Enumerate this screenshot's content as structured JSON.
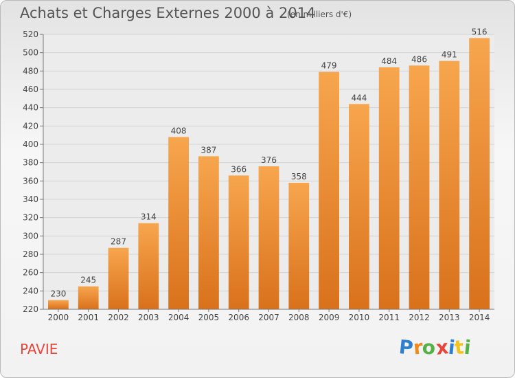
{
  "header": {
    "title": "Achats et Charges Externes 2000 à 2014",
    "subtitle": "(en milliers d'€)"
  },
  "footer": {
    "place": "PAVIE",
    "logo_letters": [
      "P",
      "r",
      "o",
      "x",
      "i",
      "t",
      "i"
    ],
    "logo_colors": [
      "#2f7fd1",
      "#f08a1c",
      "#55b046",
      "#e8453c",
      "#2f7fd1",
      "#f2c21d",
      "#55b046"
    ]
  },
  "chart_data": {
    "type": "bar",
    "title": "Achats et Charges Externes 2000 à 2014",
    "subtitle": "(en milliers d'€)",
    "categories": [
      "2000",
      "2001",
      "2002",
      "2003",
      "2004",
      "2005",
      "2006",
      "2007",
      "2008",
      "2009",
      "2010",
      "2011",
      "2012",
      "2013",
      "2014"
    ],
    "values": [
      230,
      245,
      287,
      314,
      408,
      387,
      366,
      376,
      358,
      479,
      444,
      484,
      486,
      491,
      516
    ],
    "ylim": [
      220,
      520
    ],
    "yticks": [
      220,
      240,
      260,
      280,
      300,
      320,
      340,
      360,
      380,
      400,
      420,
      440,
      460,
      480,
      500,
      520
    ],
    "grid": true,
    "bar_color": "#f08a2c"
  }
}
